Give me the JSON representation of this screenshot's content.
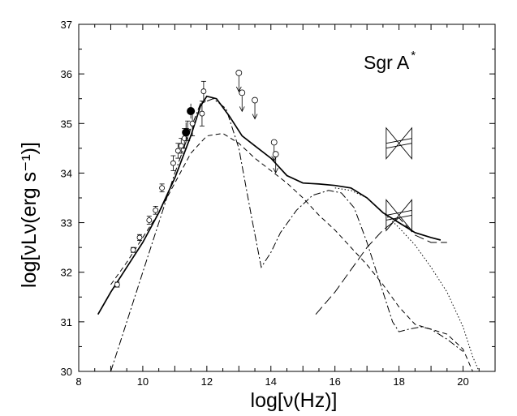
{
  "chart_data": {
    "type": "line",
    "annotation": "Sgr A",
    "annotation_superscript": "*",
    "xlabel": "log[ν(Hz)]",
    "ylabel": "log[νLν(erg s⁻¹)]",
    "xlim": [
      8,
      21
    ],
    "ylim": [
      30,
      37
    ],
    "xticks": [
      8,
      10,
      12,
      14,
      16,
      18,
      20
    ],
    "yticks": [
      30,
      31,
      32,
      33,
      34,
      35,
      36,
      37
    ],
    "series": [
      {
        "style": "solid",
        "x": [
          8.6,
          9.0,
          9.5,
          10.0,
          10.5,
          11.0,
          11.5,
          11.8,
          12.0,
          12.3,
          12.7,
          13.1,
          13.5,
          14.0,
          14.5,
          15.0,
          15.5,
          16.0,
          16.5,
          17.0,
          17.5,
          18.0,
          18.5,
          19.0,
          19.3
        ],
        "y": [
          31.15,
          31.6,
          32.1,
          32.6,
          33.2,
          33.9,
          34.75,
          35.35,
          35.55,
          35.5,
          35.15,
          34.75,
          34.55,
          34.3,
          33.95,
          33.8,
          33.78,
          33.75,
          33.7,
          33.5,
          33.2,
          33.0,
          32.8,
          32.7,
          32.65
        ]
      },
      {
        "style": "dashed",
        "x": [
          9.0,
          9.5,
          10.0,
          10.5,
          11.0,
          11.5,
          12.0,
          12.5,
          13.0,
          13.5,
          14.0,
          14.5,
          15.0,
          15.5,
          16.0,
          16.5,
          17.0,
          17.5,
          18.0,
          18.5,
          19.0,
          19.5,
          20.0,
          20.3
        ],
        "y": [
          31.75,
          32.2,
          32.7,
          33.2,
          33.8,
          34.4,
          34.75,
          34.8,
          34.6,
          34.3,
          34.05,
          33.8,
          33.5,
          33.15,
          32.85,
          32.5,
          32.15,
          31.75,
          31.3,
          30.95,
          30.85,
          30.75,
          30.45,
          30.0
        ]
      },
      {
        "style": "dash-dot",
        "x": [
          9.0,
          9.5,
          10.0,
          10.5,
          11.0,
          11.5,
          11.8,
          12.2,
          12.6,
          13.0,
          13.4,
          13.7,
          14.0,
          14.3,
          14.8,
          15.3,
          15.8,
          16.2,
          16.6,
          17.0,
          17.5,
          17.8,
          18.0,
          18.3,
          18.7,
          19.0,
          19.5,
          20.0
        ],
        "y": [
          30.0,
          31.0,
          32.0,
          33.0,
          34.0,
          34.9,
          35.4,
          35.5,
          35.3,
          34.5,
          33.1,
          32.1,
          32.4,
          32.8,
          33.25,
          33.55,
          33.65,
          33.6,
          33.3,
          32.6,
          31.6,
          31.0,
          30.8,
          30.85,
          30.9,
          30.85,
          30.65,
          30.4
        ]
      },
      {
        "style": "dotted",
        "x": [
          16.0,
          16.5,
          17.0,
          17.5,
          18.0,
          18.5,
          19.0,
          19.5,
          20.0,
          20.3,
          20.5
        ],
        "y": [
          33.7,
          33.65,
          33.5,
          33.2,
          32.9,
          32.55,
          32.1,
          31.6,
          30.9,
          30.3,
          30.0
        ]
      },
      {
        "style": "long-dash",
        "x": [
          15.4,
          16.0,
          16.5,
          17.0,
          17.5,
          18.0,
          18.5,
          19.0,
          19.5
        ],
        "y": [
          31.15,
          31.6,
          32.05,
          32.5,
          32.85,
          33.1,
          32.75,
          32.6,
          32.6
        ]
      }
    ],
    "points_open": [
      {
        "x": 9.2,
        "y": 31.75,
        "err": 0.05
      },
      {
        "x": 9.7,
        "y": 32.45,
        "err": 0.05
      },
      {
        "x": 9.9,
        "y": 32.7,
        "err": 0.06
      },
      {
        "x": 10.2,
        "y": 33.05,
        "err": 0.08
      },
      {
        "x": 10.4,
        "y": 33.25,
        "err": 0.08
      },
      {
        "x": 10.6,
        "y": 33.7,
        "err": 0.08
      },
      {
        "x": 10.95,
        "y": 34.2,
        "err": 0.15
      },
      {
        "x": 11.1,
        "y": 34.45,
        "err": 0.15
      },
      {
        "x": 11.2,
        "y": 34.55,
        "err": 0.15
      },
      {
        "x": 11.3,
        "y": 34.7,
        "err": 0.2
      },
      {
        "x": 11.4,
        "y": 34.85,
        "err": 0.2
      },
      {
        "x": 11.55,
        "y": 35.0,
        "err": 0.25
      },
      {
        "x": 11.85,
        "y": 35.2,
        "err": 0.25
      },
      {
        "x": 11.9,
        "y": 35.65,
        "err": 0.2
      }
    ],
    "points_filled": [
      {
        "x": 11.35,
        "y": 34.82,
        "err": 0.2
      },
      {
        "x": 11.5,
        "y": 35.25,
        "err": 0.15
      }
    ],
    "upper_limits": [
      {
        "x": 13.0,
        "y": 36.02
      },
      {
        "x": 13.1,
        "y": 35.62
      },
      {
        "x": 13.5,
        "y": 35.47
      },
      {
        "x": 14.1,
        "y": 34.62
      },
      {
        "x": 14.15,
        "y": 34.38
      }
    ],
    "bowties": [
      {
        "x0": 17.6,
        "x1": 18.4,
        "y_center": 34.6
      },
      {
        "x0": 17.6,
        "x1": 18.4,
        "y_center": 33.15
      }
    ]
  }
}
